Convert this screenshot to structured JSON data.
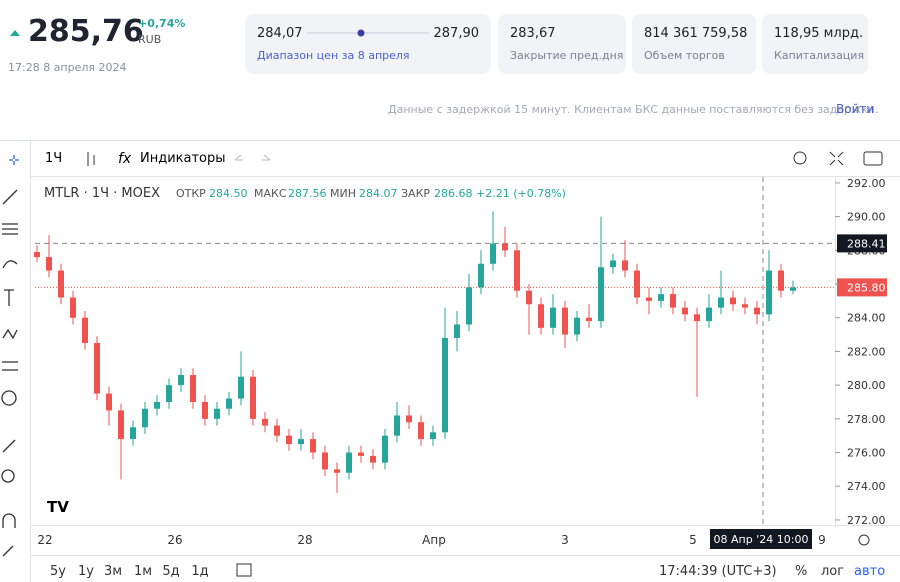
{
  "header": {
    "price": "285,76",
    "change": "+0,74%",
    "currency": "RUB",
    "timestamp": "17:28 8 апреля 2024",
    "range_low": "284,07",
    "range_high": "287,90",
    "range_caption": "Диапазон цен за 8 апреля",
    "stats": [
      {
        "value": "283,67",
        "label": "Закрытие пред.дня"
      },
      {
        "value": "814 361 759,58",
        "label": "Объем торгов"
      },
      {
        "value": "118,95 млрд.",
        "label": "Капитализация"
      }
    ],
    "notice": "Данные с задержкой 15 минут. Клиентам БКС данные поставляются без задержки.",
    "login": "Войти"
  },
  "toolbar": {
    "interval": "1Ч",
    "indicators": "Индикаторы"
  },
  "chart_data": {
    "type": "candlestick",
    "legend": {
      "symbol": "MTLR · 1Ч · MOEX",
      "open_label": "ОТКР",
      "open": "284.50",
      "high_label": "МАКС",
      "high": "287.56",
      "low_label": "МИН",
      "low": "284.07",
      "close_label": "ЗАКР",
      "close": "286.68",
      "change": "+2.21 (+0.78%)"
    },
    "up_color": "#26a69a",
    "down_color": "#ef5350",
    "open": [
      287.9,
      287.6,
      286.8,
      285.2,
      284.0,
      282.5,
      279.5,
      278.5,
      276.8,
      277.5,
      278.6,
      279.0,
      280.0,
      280.6,
      279.0,
      278.0,
      278.6,
      279.2,
      280.5,
      278.0,
      277.6,
      277.0,
      276.5,
      276.8,
      276.0,
      275.0,
      274.8,
      276.0,
      275.8,
      275.4,
      277.0,
      278.2,
      277.8,
      276.8,
      277.2,
      282.8,
      283.6,
      285.8,
      287.2,
      288.4,
      288.0,
      285.6,
      284.8,
      283.4,
      284.6,
      283.0,
      284.0,
      283.8,
      287.0,
      287.4,
      286.8,
      285.2,
      285.0,
      285.4,
      284.6,
      284.2,
      283.8,
      284.6,
      285.2,
      284.8,
      284.6,
      284.2,
      286.8,
      285.6
    ],
    "high": [
      288.3,
      288.9,
      287.2,
      285.6,
      284.4,
      282.9,
      279.9,
      278.9,
      277.9,
      279.0,
      279.4,
      280.4,
      281.0,
      281.0,
      279.4,
      279.0,
      279.6,
      282.0,
      280.9,
      278.4,
      278.0,
      277.4,
      277.4,
      277.2,
      276.4,
      275.4,
      276.4,
      276.4,
      276.2,
      277.4,
      279.0,
      278.8,
      278.2,
      277.6,
      284.6,
      284.4,
      286.6,
      288.0,
      290.3,
      289.4,
      288.4,
      286.0,
      285.2,
      285.4,
      285.0,
      284.4,
      284.8,
      290.0,
      287.8,
      288.6,
      287.2,
      285.8,
      285.8,
      285.8,
      285.0,
      284.6,
      285.4,
      286.8,
      285.6,
      285.2,
      285.0,
      288.0,
      287.2,
      286.2
    ],
    "low": [
      287.3,
      286.4,
      284.8,
      283.6,
      282.1,
      279.1,
      277.6,
      274.4,
      276.4,
      277.1,
      278.2,
      278.6,
      279.6,
      278.6,
      277.6,
      277.6,
      278.2,
      278.8,
      277.6,
      277.2,
      276.6,
      276.1,
      276.1,
      275.6,
      274.6,
      273.6,
      274.4,
      275.4,
      275.0,
      275.0,
      276.6,
      277.4,
      276.4,
      276.4,
      276.8,
      282.0,
      283.2,
      285.4,
      286.8,
      287.6,
      285.2,
      283.0,
      283.0,
      283.0,
      282.2,
      282.6,
      283.4,
      283.4,
      286.6,
      286.4,
      284.8,
      284.2,
      284.6,
      284.2,
      283.8,
      279.3,
      283.4,
      284.2,
      284.4,
      284.2,
      283.6,
      283.8,
      285.2,
      285.4
    ],
    "close": [
      287.6,
      286.8,
      285.2,
      284.0,
      282.5,
      279.5,
      278.5,
      276.8,
      277.5,
      278.6,
      279.0,
      280.0,
      280.6,
      279.0,
      278.0,
      278.6,
      279.2,
      280.5,
      278.0,
      277.6,
      277.0,
      276.5,
      276.8,
      276.0,
      275.0,
      274.8,
      276.0,
      275.8,
      275.4,
      277.0,
      278.2,
      277.8,
      276.8,
      277.2,
      282.8,
      283.6,
      285.8,
      287.2,
      288.4,
      288.0,
      285.6,
      284.8,
      283.4,
      284.6,
      283.0,
      284.0,
      283.8,
      287.0,
      287.4,
      286.8,
      285.2,
      285.0,
      285.4,
      284.6,
      284.2,
      283.8,
      284.6,
      285.2,
      284.8,
      284.6,
      284.2,
      286.8,
      285.6,
      285.8
    ],
    "ylim": [
      271.7,
      292.35
    ],
    "yticks": [
      {
        "value": 272,
        "label": "272.00"
      },
      {
        "value": 274,
        "label": "274.00"
      },
      {
        "value": 276,
        "label": "276.00"
      },
      {
        "value": 278,
        "label": "278.00"
      },
      {
        "value": 280,
        "label": "280.00"
      },
      {
        "value": 282,
        "label": "282.00"
      },
      {
        "value": 284,
        "label": "284.00"
      },
      {
        "value": 286,
        "label": "286.00"
      },
      {
        "value": 288,
        "label": "288.00"
      },
      {
        "value": 290,
        "label": "290.00"
      },
      {
        "value": 292,
        "label": "292.00"
      }
    ],
    "x_labels": [
      "22",
      "26",
      "28",
      "Апр",
      "3",
      "5",
      "9"
    ],
    "crosshair": {
      "price": {
        "value": 288.41,
        "label": "288.41"
      },
      "time": "08 Апр '24  10:00"
    },
    "last_price": {
      "value": 285.8,
      "label": "285.80"
    }
  },
  "footer": {
    "ranges": [
      "5у",
      "1у",
      "3м",
      "1м",
      "5д",
      "1д"
    ],
    "clock": "17:44:39 (UTC+3)",
    "percent": "%",
    "log": "лог",
    "auto": "авто"
  }
}
